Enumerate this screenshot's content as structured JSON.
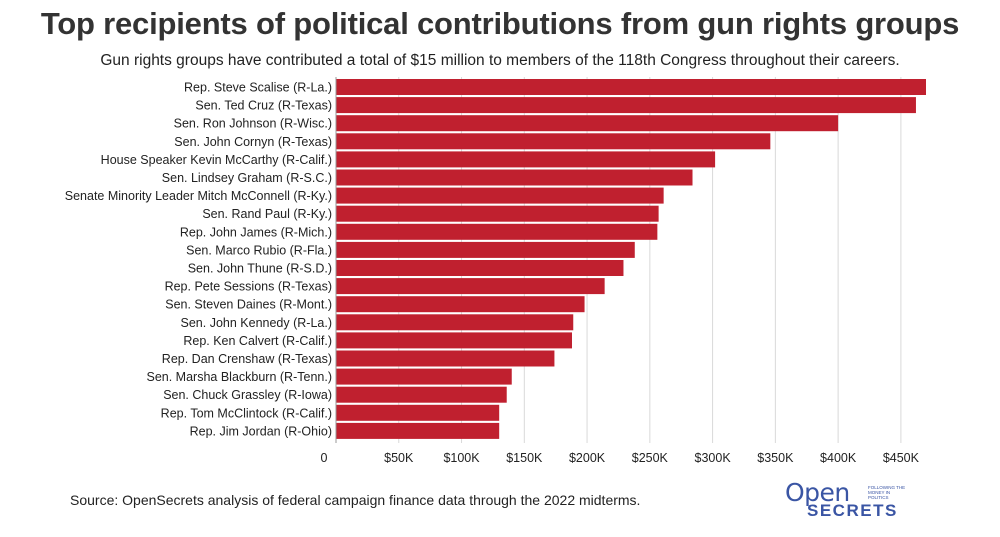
{
  "title": "Top recipients of political contributions from gun rights groups",
  "subtitle": "Gun rights groups have contributed a total of $15 million to members of the 118th Congress throughout their careers.",
  "source": "Source: OpenSecrets analysis of federal campaign finance data through the 2022 midterms.",
  "logo": {
    "open": "Open",
    "secrets": "SECRETS",
    "tagline": "FOLLOWING THE MONEY IN POLITICS"
  },
  "colors": {
    "bar": "#c0202f",
    "grid": "#d9d9d9",
    "text": "#222222"
  },
  "chart_data": {
    "type": "bar",
    "orientation": "horizontal",
    "title": "Top recipients of political contributions from gun rights groups",
    "subtitle": "Gun rights groups have contributed a total of $15 million to members of the 118th Congress throughout their careers.",
    "categories": [
      "Rep. Steve Scalise (R-La.)",
      "Sen. Ted Cruz (R-Texas)",
      "Sen. Ron Johnson (R-Wisc.)",
      "Sen. John Cornyn (R-Texas)",
      "House Speaker Kevin McCarthy (R-Calif.)",
      "Sen. Lindsey Graham (R-S.C.)",
      "Senate Minority Leader Mitch McConnell (R-Ky.)",
      "Sen. Rand Paul (R-Ky.)",
      "Rep. John James (R-Mich.)",
      "Sen. Marco Rubio (R-Fla.)",
      "Sen. John Thune (R-S.D.)",
      "Rep. Pete Sessions (R-Texas)",
      "Sen. Steven Daines (R-Mont.)",
      "Sen. John Kennedy (R-La.)",
      "Rep. Ken Calvert (R-Calif.)",
      "Rep. Dan Crenshaw (R-Texas)",
      "Sen. Marsha Blackburn (R-Tenn.)",
      "Sen. Chuck Grassley (R-Iowa)",
      "Rep. Tom McClintock (R-Calif.)",
      "Rep. Jim Jordan (R-Ohio)"
    ],
    "values": [
      470000,
      462000,
      400000,
      346000,
      302000,
      284000,
      261000,
      257000,
      256000,
      238000,
      229000,
      214000,
      198000,
      189000,
      188000,
      174000,
      140000,
      136000,
      130000,
      130000
    ],
    "xlim": [
      0,
      470000
    ],
    "xticks": [
      0,
      50000,
      100000,
      150000,
      200000,
      250000,
      300000,
      350000,
      400000,
      450000
    ],
    "xtick_labels": [
      "0",
      "$50K",
      "$100K",
      "$150K",
      "$200K",
      "$250K",
      "$300K",
      "$350K",
      "$400K",
      "$450K"
    ],
    "xlabel": "",
    "ylabel": "",
    "grid": true,
    "legend": false
  }
}
